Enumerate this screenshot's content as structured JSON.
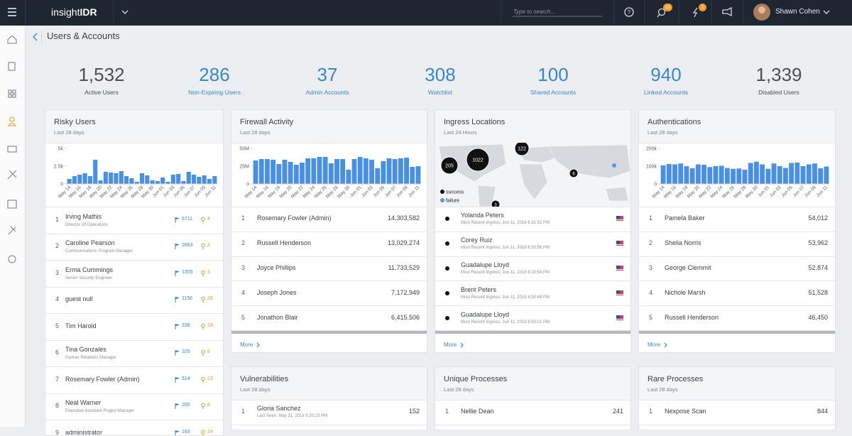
{
  "header": {
    "brand_prefix": "insight",
    "brand_suffix": "IDR",
    "search_placeholder": "Type to search...",
    "badges": [
      "15",
      "2"
    ],
    "user": "Shawn Cohen"
  },
  "page_title": "Users & Accounts",
  "stats": [
    {
      "value": "1,532",
      "label": "Active Users",
      "color": "#4a5058"
    },
    {
      "value": "286",
      "label": "Non-Expiring Users",
      "color": "#3a87c8"
    },
    {
      "value": "37",
      "label": "Admin Accounts",
      "color": "#3a87c8"
    },
    {
      "value": "308",
      "label": "Watchlist",
      "color": "#3a87c8"
    },
    {
      "value": "100",
      "label": "Shared Accounts",
      "color": "#3a87c8"
    },
    {
      "value": "940",
      "label": "Linked Accounts",
      "color": "#3a87c8"
    },
    {
      "value": "1,339",
      "label": "Disabled Users",
      "color": "#4a5058"
    }
  ],
  "cards": [
    {
      "title": "Risky Users",
      "subtitle": "Last 28 days",
      "chart": {
        "type": "bar",
        "color": "#4a90e2",
        "categories": [
          "May 14",
          null,
          "May 16",
          null,
          "May 18",
          null,
          "May 20",
          null,
          "May 22",
          null,
          "May 24",
          null,
          "May 26",
          null,
          "May 28",
          null,
          "May 30",
          null,
          "Jun 01",
          null,
          "Jun 03",
          null,
          "Jun 05",
          null,
          "Jun 07",
          null,
          "Jun 09",
          null,
          "Jun 11"
        ],
        "values": [
          700,
          1100,
          1300,
          1500,
          1100,
          3400,
          500,
          1700,
          1600,
          1500,
          1800,
          1100,
          800,
          300,
          1500,
          1200,
          500,
          400,
          900,
          300,
          1300,
          1400,
          400,
          1700,
          1300,
          1000,
          1200,
          700,
          1100
        ],
        "ylim": [
          0,
          5000
        ],
        "yticks": [
          0,
          {
            "value": 2500,
            "label": "2.5k"
          },
          {
            "value": 5000,
            "label": "5k"
          }
        ]
      },
      "rows": [
        {
          "rank": "1",
          "name": "Irving Mathis",
          "role": "Director Of Operations",
          "flags": "6711",
          "risks": "4"
        },
        {
          "rank": "2",
          "name": "Caroline Pearson",
          "role": "Communications Program Manager",
          "flags": "2663",
          "risks": "3"
        },
        {
          "rank": "3",
          "name": "Erma Cummings",
          "role": "Senior Security Engineer",
          "flags": "1355",
          "risks": "3"
        },
        {
          "rank": "4",
          "name": "guest null",
          "flags": "1156",
          "risks": "26"
        },
        {
          "rank": "5",
          "name": "Tim Harold",
          "flags": "338",
          "risks": "18"
        },
        {
          "rank": "6",
          "name": "Tina Gonzales",
          "role": "Partner Relations Manager",
          "flags": "325",
          "risks": "8"
        },
        {
          "rank": "7",
          "name": "Rosemary Fowler (Admin)",
          "flags": "314",
          "risks": "13"
        },
        {
          "rank": "8",
          "name": "Neal Warner",
          "role": "Executive Assistant Project Manager",
          "flags": "205",
          "risks": "8"
        },
        {
          "rank": "9",
          "name": "administrator",
          "flags": "193",
          "risks": "24"
        }
      ]
    },
    {
      "title": "Firewall Activity",
      "subtitle": "Last 28 days",
      "chart": {
        "type": "bar",
        "color": "#4a90e2",
        "categories": [
          "May 14",
          null,
          "May 16",
          null,
          "May 18",
          null,
          "May 20",
          null,
          "May 22",
          null,
          "May 24",
          null,
          "May 26",
          null,
          "May 28",
          null,
          "May 30",
          null,
          "Jun 01",
          null,
          "Jun 03",
          null,
          "Jun 05",
          null,
          "Jun 07",
          null,
          "Jun 09",
          null,
          "Jun 11"
        ],
        "values": [
          33000000,
          35000000,
          35000000,
          34000000,
          28000000,
          34000000,
          31000000,
          27000000,
          30000000,
          36000000,
          36000000,
          38000000,
          38000000,
          29000000,
          35000000,
          35000000,
          20000000,
          35000000,
          38000000,
          36000000,
          34000000,
          22000000,
          32000000,
          36000000,
          35000000,
          36000000,
          37000000,
          24000000,
          25000000
        ],
        "ylim": [
          0,
          50000000
        ],
        "yticks": [
          0,
          {
            "value": 25000000,
            "label": "25M"
          },
          {
            "value": 50000000,
            "label": "50M"
          }
        ]
      },
      "rows": [
        {
          "rank": "1",
          "name": "Rosemary Fowler (Admin)",
          "value": "14,303,582"
        },
        {
          "rank": "2",
          "name": "Russell Henderson",
          "value": "13,029,274"
        },
        {
          "rank": "3",
          "name": "Joyce Phillips",
          "value": "11,733,529"
        },
        {
          "rank": "4",
          "name": "Joseph Jones",
          "value": "7,172,949"
        },
        {
          "rank": "5",
          "name": "Jonathon Blair",
          "value": "6,415,506"
        }
      ],
      "more": "More"
    },
    {
      "title": "Ingress Locations",
      "subtitle": "Last 24 Hours",
      "map": {
        "clusters": [
          "205",
          "1022",
          "122",
          "6",
          "3"
        ],
        "legend": [
          "success",
          "failure"
        ]
      },
      "rows": [
        {
          "name": "Yolanda Peters",
          "detail": "Most Recent Ingress: Jun 11, 2018 6:31:52 PM"
        },
        {
          "name": "Corey Ruiz",
          "detail": "Most Recent Ingress: Jun 11, 2018 6:30:56 PM"
        },
        {
          "name": "Guadalupe Lloyd",
          "detail": "Most Recent Ingress: Jun 11, 2018 6:30:54 PM"
        },
        {
          "name": "Brent Peters",
          "detail": "Most Recent Ingress: Jun 11, 2018 6:30:48 PM"
        },
        {
          "name": "Guadalupe Lloyd",
          "detail": "Most Recent Ingress: Jun 11, 2018 6:30:21 PM"
        }
      ],
      "more": "More"
    },
    {
      "title": "Authentications",
      "subtitle": "Last 28 days",
      "chart": {
        "type": "bar",
        "color": "#4a90e2",
        "categories": [
          "May 14",
          null,
          "May 16",
          null,
          "May 18",
          null,
          "May 20",
          null,
          "May 22",
          null,
          "May 24",
          null,
          "May 26",
          null,
          "May 28",
          null,
          "May 30",
          null,
          "Jun 01",
          null,
          "Jun 03",
          null,
          "Jun 05",
          null,
          "Jun 07",
          null,
          "Jun 09",
          null,
          "Jun 11"
        ],
        "values": [
          105000,
          112000,
          110000,
          115000,
          100000,
          88000,
          110000,
          108000,
          95000,
          100000,
          102000,
          90000,
          85000,
          87000,
          80000,
          118000,
          125000,
          110000,
          85000,
          115000,
          100000,
          90000,
          118000,
          120000,
          100000,
          110000,
          115000,
          88000,
          98000
        ],
        "ylim": [
          0,
          200000
        ],
        "yticks": [
          0,
          {
            "value": 100000,
            "label": "100k"
          },
          {
            "value": 200000,
            "label": "200k"
          }
        ]
      },
      "rows": [
        {
          "rank": "1",
          "name": "Pamela Baker",
          "value": "54,012"
        },
        {
          "rank": "2",
          "name": "Shelia Norris",
          "value": "53,962"
        },
        {
          "rank": "3",
          "name": "George Clemmit",
          "value": "52,874"
        },
        {
          "rank": "4",
          "name": "Nichole Marsh",
          "value": "51,528"
        },
        {
          "rank": "5",
          "name": "Russell Henderson",
          "value": "46,450"
        }
      ],
      "more": "More"
    },
    {
      "title": "Vulnerabilities",
      "subtitle": "Last 28 days",
      "rows": [
        {
          "rank": "1",
          "name": "Gloria Sanchez",
          "detail": "Last Seen: May 31, 2018 8:20:23 PM",
          "value": "152"
        }
      ]
    },
    {
      "title": "Unique Processes",
      "subtitle": "Last 28 days",
      "rows": [
        {
          "rank": "1",
          "name": "Nellie Dean",
          "value": "241"
        }
      ]
    },
    {
      "title": "Rare Processes",
      "subtitle": "Last 28 days",
      "rows": [
        {
          "rank": "1",
          "name": "Nexpose Scan",
          "value": "844"
        }
      ]
    }
  ]
}
